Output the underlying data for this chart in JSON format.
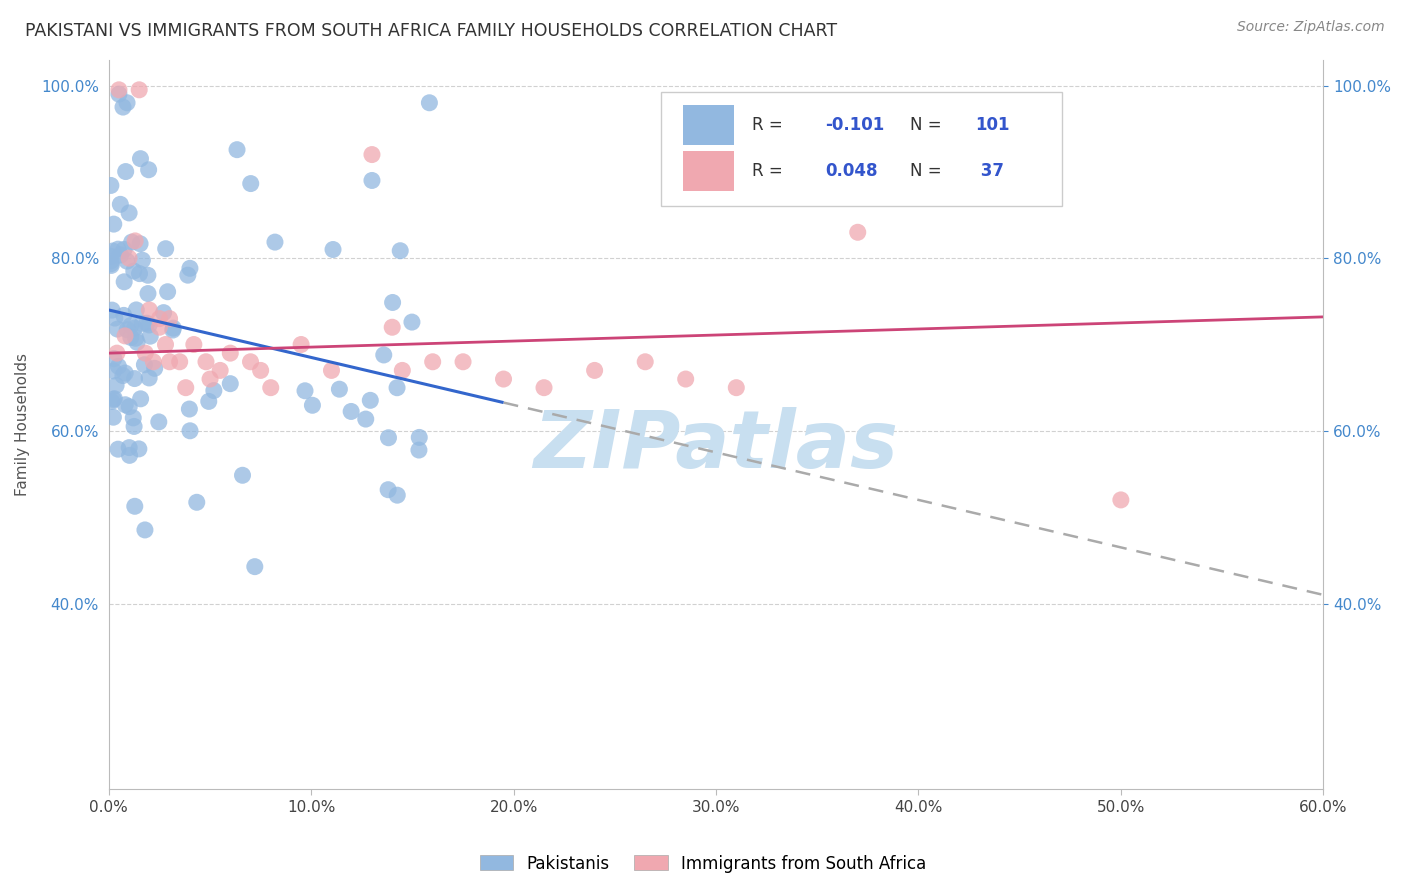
{
  "title": "PAKISTANI VS IMMIGRANTS FROM SOUTH AFRICA FAMILY HOUSEHOLDS CORRELATION CHART",
  "source": "Source: ZipAtlas.com",
  "ylabel": "Family Households",
  "xlim": [
    0.0,
    0.6
  ],
  "ylim": [
    0.185,
    1.03
  ],
  "xticks": [
    0.0,
    0.1,
    0.2,
    0.3,
    0.4,
    0.5,
    0.6
  ],
  "xticklabels": [
    "0.0%",
    "10.0%",
    "20.0%",
    "30.0%",
    "40.0%",
    "50.0%",
    "60.0%"
  ],
  "yticks": [
    0.4,
    0.6,
    0.8,
    1.0
  ],
  "yticklabels": [
    "40.0%",
    "60.0%",
    "80.0%",
    "100.0%"
  ],
  "blue_color": "#92b8e0",
  "pink_color": "#f0a8b0",
  "blue_line_color": "#3366cc",
  "pink_line_color": "#cc4477",
  "dash_color": "#aaaaaa",
  "watermark": "ZIPatlas",
  "watermark_color": "#c8dff0",
  "background_color": "#ffffff",
  "grid_color": "#cccccc",
  "right_tick_color": "#4488cc",
  "legend_text_color": "#333333",
  "legend_blue_val_color": "#3355cc",
  "legend_pink_val_color": "#cc3366"
}
